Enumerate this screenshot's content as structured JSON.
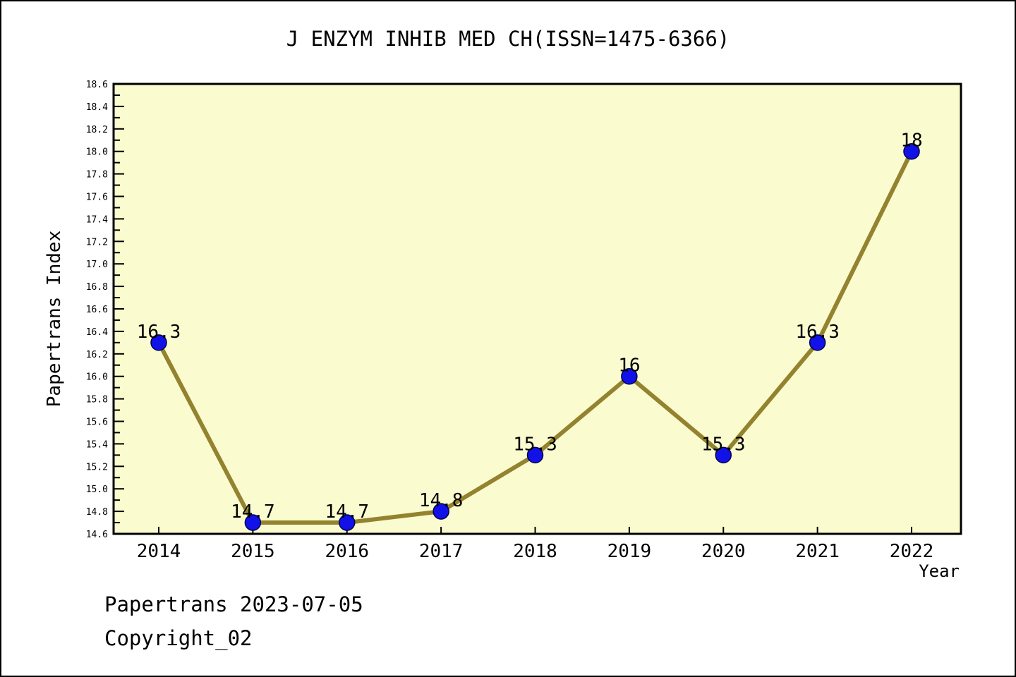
{
  "figure": {
    "footer_line1": "Papertrans 2023-07-05",
    "footer_line2": "Copyright_02"
  },
  "chart_data": {
    "type": "line",
    "title": "J ENZYM INHIB MED CH(ISSN=1475-6366)",
    "xlabel": "Year",
    "ylabel": "Papertrans Index",
    "x": [
      2014,
      2015,
      2016,
      2017,
      2018,
      2019,
      2020,
      2021,
      2022
    ],
    "series": [
      {
        "name": "Papertrans Index",
        "values": [
          16.3,
          14.7,
          14.7,
          14.8,
          15.3,
          16,
          15.3,
          16.3,
          18
        ],
        "point_labels": [
          "16.3",
          "14.7",
          "14.7",
          "14.8",
          "15.3",
          "16",
          "15.3",
          "16.3",
          "18"
        ]
      }
    ],
    "ylim": [
      14.6,
      18.6
    ],
    "ytick_step": 0.2,
    "yminor_step": 0.1,
    "grid": false,
    "legend_position": "none",
    "colors": {
      "line": "#93832F",
      "marker_fill": "#1212E8",
      "marker_edge": "#00004D",
      "plot_bg": "#FBFBD0",
      "axis": "#000000",
      "text": "#000000"
    }
  }
}
